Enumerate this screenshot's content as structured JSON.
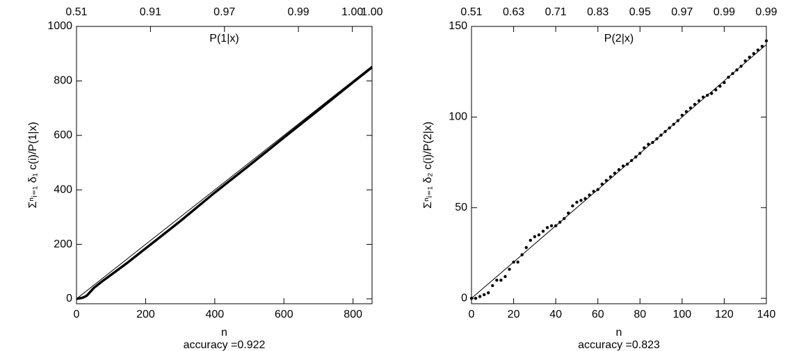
{
  "chart_data": [
    {
      "type": "line",
      "x_label": "n",
      "caption": "accuracy =0.922",
      "y_label": "Σⁿᵢ₌₁  δ₁ c(i)/P(1|x)",
      "x2_label": "P(1|x)",
      "xlim": [
        0,
        855
      ],
      "ylim": [
        -18,
        1000
      ],
      "xticks": [
        0,
        200,
        400,
        600,
        800
      ],
      "yticks": [
        0,
        200,
        400,
        600,
        800,
        1000
      ],
      "x2ticks": [
        {
          "value": 0,
          "label": "0.51"
        },
        {
          "value": 214,
          "label": "0.91"
        },
        {
          "value": 428,
          "label": "0.97"
        },
        {
          "value": 642,
          "label": "0.99"
        },
        {
          "value": 798,
          "label": "1.00"
        },
        {
          "value": 855,
          "label": "1.00"
        }
      ],
      "reference": {
        "x": [
          0,
          855
        ],
        "values": [
          0,
          855
        ]
      },
      "series": [
        {
          "color": "#000000",
          "x": [
            0,
            10,
            20,
            30,
            50,
            75,
            100,
            150,
            200,
            250,
            300,
            400,
            500,
            600,
            700,
            800,
            855
          ],
          "values": [
            0,
            2,
            5,
            12,
            40,
            65,
            88,
            135,
            185,
            235,
            285,
            390,
            490,
            592,
            693,
            795,
            850
          ]
        }
      ]
    },
    {
      "type": "scatter",
      "x_label": "n",
      "caption": "accuracy =0.823",
      "y_label": "Σⁿᵢ₌₁  δ₂ c(i)/P(2|x)",
      "x2_label": "P(2|x)",
      "xlim": [
        0,
        140
      ],
      "ylim": [
        -3,
        150
      ],
      "xticks": [
        0,
        20,
        40,
        60,
        80,
        100,
        120,
        140
      ],
      "yticks": [
        0,
        50,
        100,
        150
      ],
      "x2ticks": [
        {
          "value": 0,
          "label": "0.51"
        },
        {
          "value": 20,
          "label": "0.63"
        },
        {
          "value": 40,
          "label": "0.71"
        },
        {
          "value": 60,
          "label": "0.83"
        },
        {
          "value": 80,
          "label": "0.95"
        },
        {
          "value": 100,
          "label": "0.97"
        },
        {
          "value": 120,
          "label": "0.99"
        },
        {
          "value": 140,
          "label": "0.99"
        }
      ],
      "reference": {
        "x": [
          0,
          140
        ],
        "values": [
          0,
          140
        ]
      },
      "series": [
        {
          "color": "#000000",
          "x": [
            0,
            2,
            4,
            6,
            8,
            10,
            12,
            14,
            16,
            18,
            20,
            22,
            24,
            26,
            28,
            30,
            32,
            34,
            36,
            38,
            40,
            42,
            44,
            46,
            48,
            50,
            52,
            54,
            56,
            58,
            60,
            62,
            64,
            66,
            68,
            70,
            72,
            74,
            76,
            78,
            80,
            82,
            84,
            86,
            88,
            90,
            92,
            94,
            96,
            98,
            100,
            102,
            104,
            106,
            108,
            110,
            112,
            114,
            116,
            118,
            120,
            122,
            124,
            126,
            128,
            130,
            132,
            134,
            136,
            138,
            140
          ],
          "values": [
            0,
            0,
            1,
            2,
            3,
            7,
            10,
            10,
            12,
            16,
            20,
            20,
            24,
            28,
            32,
            34,
            35,
            37,
            39,
            40,
            40,
            42,
            44,
            47,
            51,
            53,
            54,
            55,
            57,
            59,
            60,
            63,
            65,
            67,
            69,
            71,
            73,
            74,
            76,
            78,
            80,
            83,
            85,
            86,
            88,
            90,
            92,
            94,
            96,
            98,
            101,
            103,
            105,
            107,
            109,
            111,
            112,
            113,
            115,
            117,
            119,
            122,
            124,
            126,
            128,
            131,
            133,
            135,
            137,
            139,
            142
          ]
        }
      ]
    }
  ]
}
